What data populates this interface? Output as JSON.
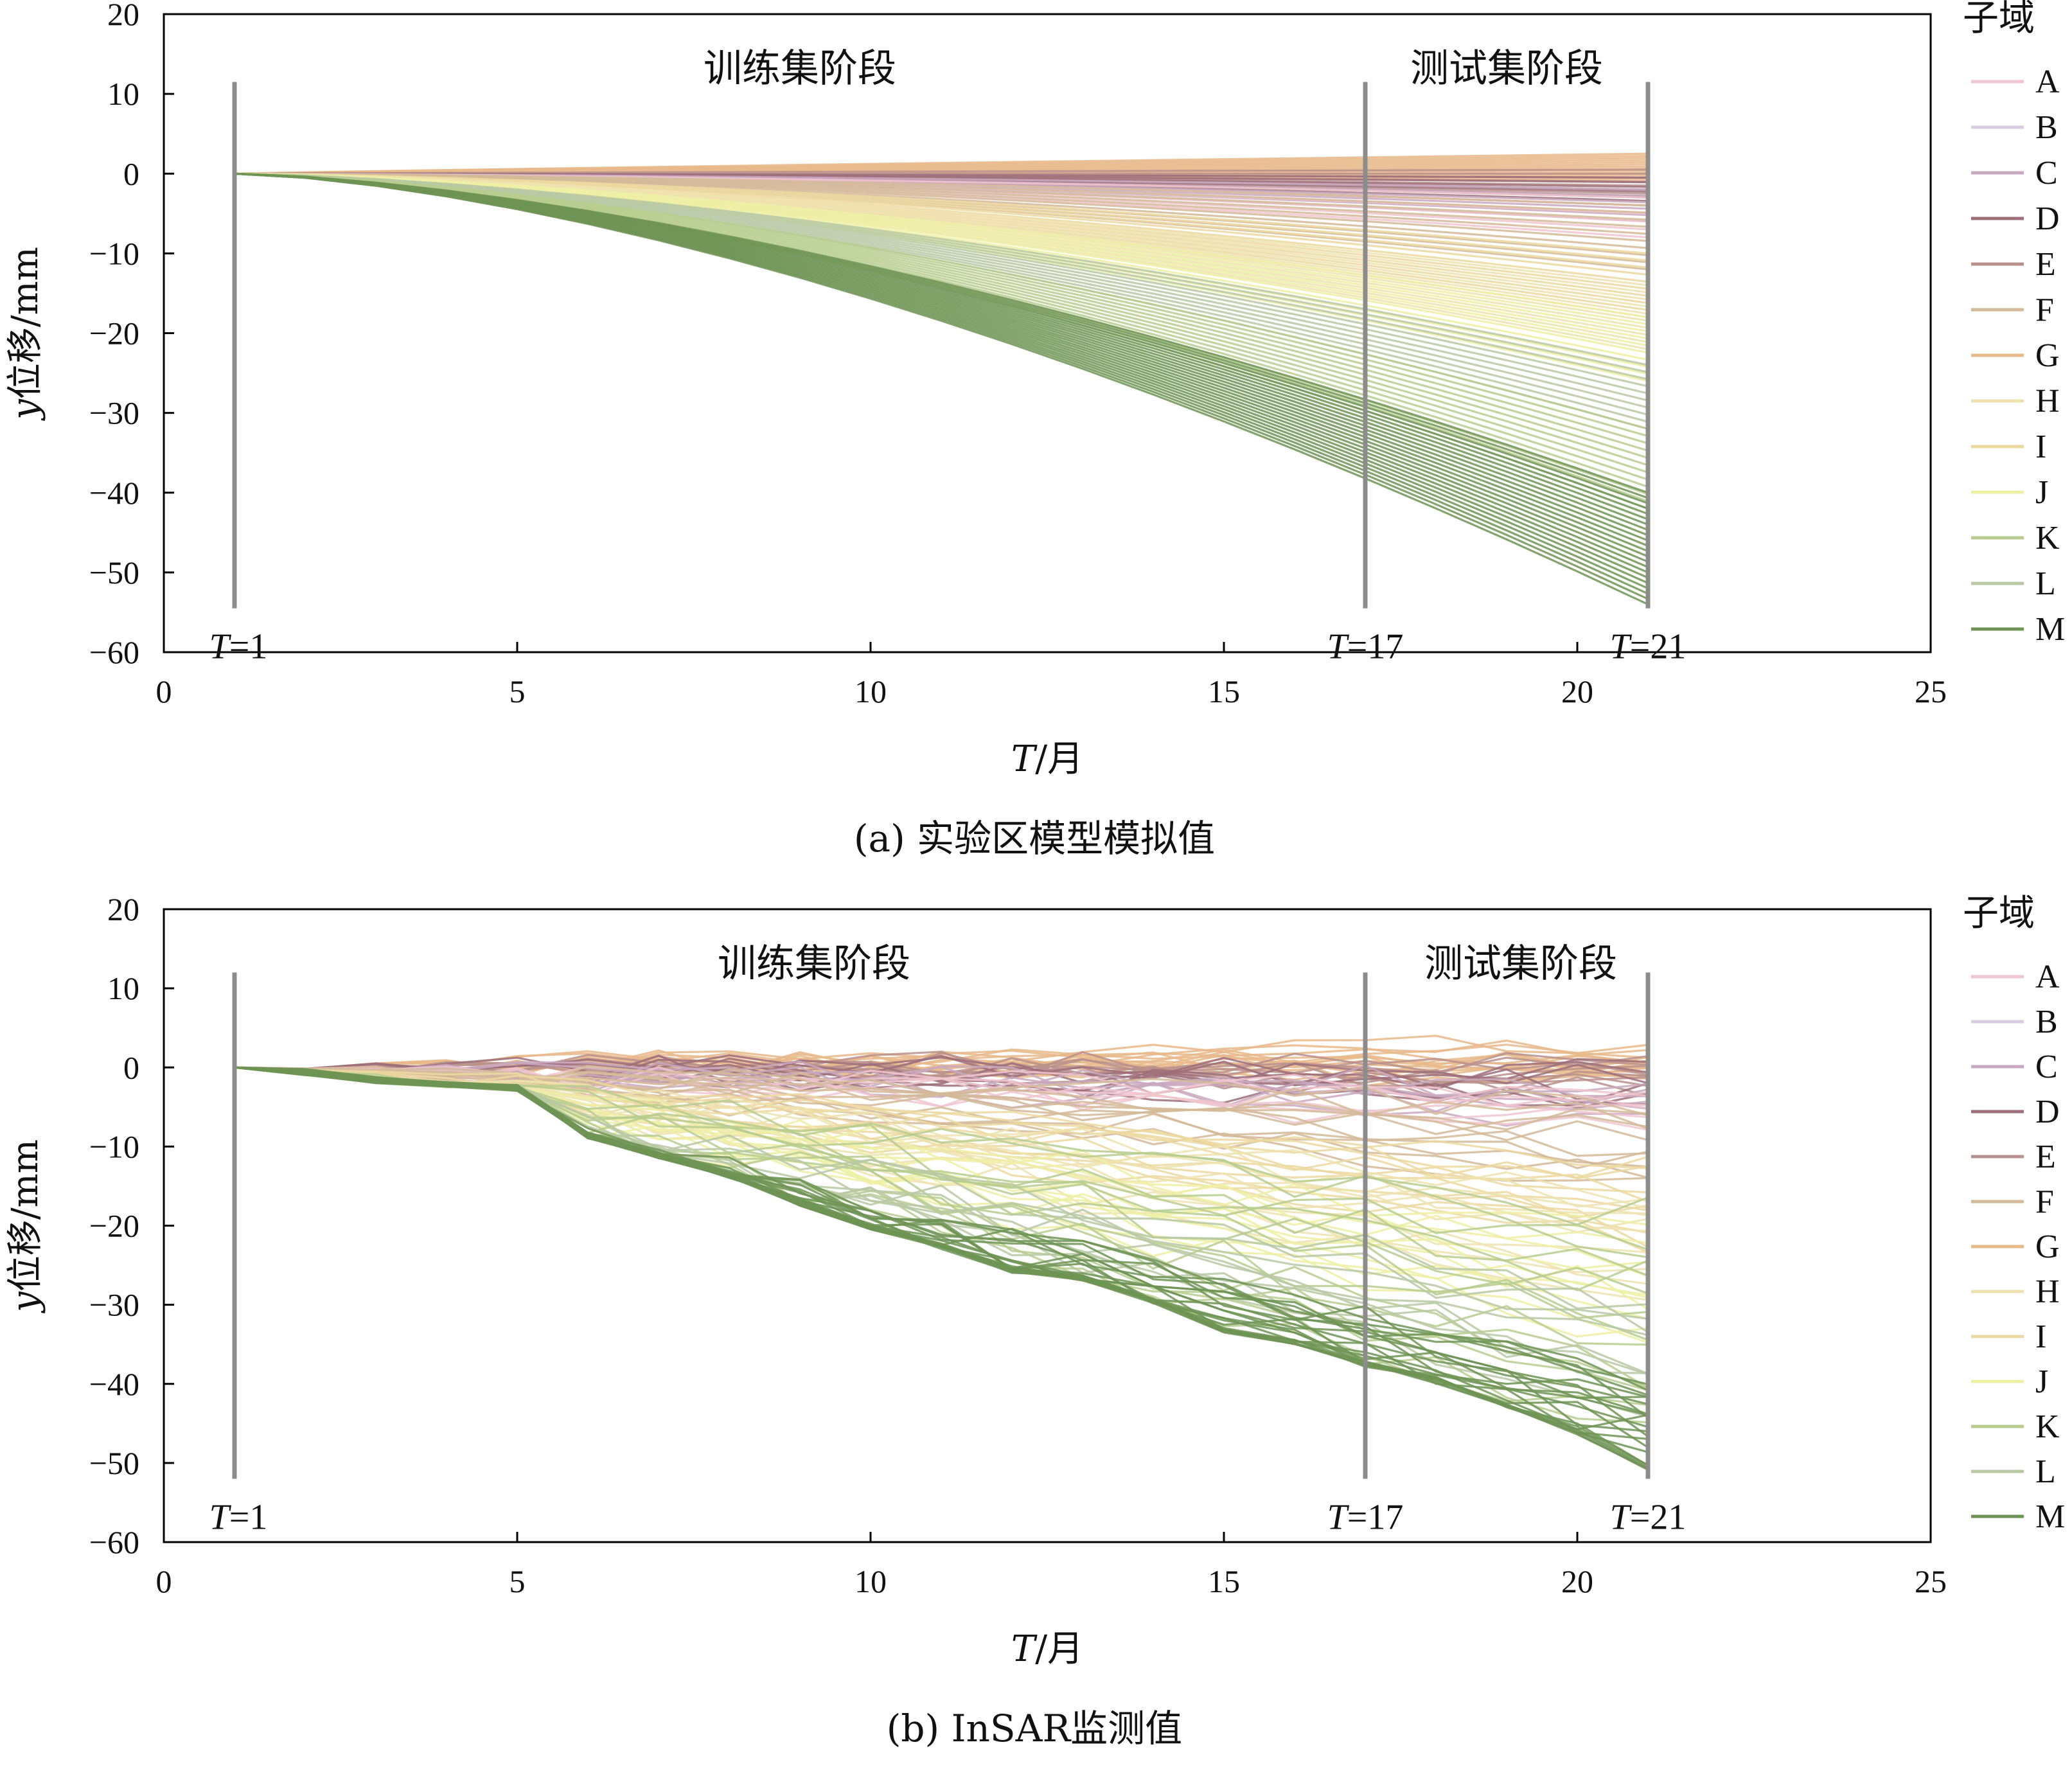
{
  "colors": {
    "subdomains": {
      "A": "#f0c6cf",
      "B": "#d9cde3",
      "C": "#c9a9bf",
      "D": "#9e6f7a",
      "E": "#b8918c",
      "F": "#d4ba98",
      "G": "#e8b98a",
      "H": "#eee3b0",
      "I": "#ecd9a0",
      "J": "#eef0a4",
      "K": "#b7cc8e",
      "L": "#b9c9a5",
      "M": "#6e9455"
    },
    "marker_line": "#8c8c8c"
  },
  "chart_data": [
    {
      "type": "line",
      "caption": "(a) 实验区模型模拟值",
      "ylabel_italic": "y",
      "ylabel_rest": "位移/mm",
      "xlabel_italic": "T",
      "xlabel_rest": "/月",
      "xlim": [
        0,
        25
      ],
      "ylim": [
        -60,
        20
      ],
      "xticks": [
        "0",
        "5",
        "10",
        "15",
        "20",
        "25"
      ],
      "yticks": [
        "20",
        "10",
        "0",
        "−10",
        "−20",
        "−30",
        "−40",
        "−50",
        "−60"
      ],
      "phases": [
        {
          "label": "训练集阶段",
          "x_center": 9
        },
        {
          "label": "测试集阶段",
          "x_center": 19
        }
      ],
      "markers": [
        {
          "t": 1,
          "label_italic": "T",
          "label_rest": "=1",
          "y_top": 11.5,
          "y_bottom": -54.5
        },
        {
          "t": 17,
          "label_italic": "T",
          "label_rest": "=17",
          "y_top": 11.5,
          "y_bottom": -54.5
        },
        {
          "t": 21,
          "label_italic": "T",
          "label_rest": "=21",
          "y_top": 11.5,
          "y_bottom": -54.5
        }
      ],
      "legend_title": "子域",
      "legend": [
        "A",
        "B",
        "C",
        "D",
        "E",
        "F",
        "G",
        "H",
        "I",
        "J",
        "K",
        "L",
        "M"
      ],
      "t_range": [
        1,
        21
      ],
      "series_bands": [
        {
          "subdomain": "G",
          "count": 14,
          "final_range": [
            2.5,
            -1
          ]
        },
        {
          "subdomain": "E",
          "count": 8,
          "final_range": [
            0.5,
            -3
          ]
        },
        {
          "subdomain": "D",
          "count": 7,
          "final_range": [
            -0.5,
            -4
          ]
        },
        {
          "subdomain": "C",
          "count": 6,
          "final_range": [
            -2,
            -6
          ]
        },
        {
          "subdomain": "A",
          "count": 6,
          "final_range": [
            -3,
            -8
          ]
        },
        {
          "subdomain": "F",
          "count": 10,
          "final_range": [
            -4,
            -12
          ]
        },
        {
          "subdomain": "I",
          "count": 10,
          "final_range": [
            -10,
            -18
          ]
        },
        {
          "subdomain": "H",
          "count": 10,
          "final_range": [
            -14,
            -22
          ]
        },
        {
          "subdomain": "J",
          "count": 10,
          "final_range": [
            -18,
            -26
          ]
        },
        {
          "subdomain": "L",
          "count": 10,
          "final_range": [
            -24,
            -32
          ]
        },
        {
          "subdomain": "K",
          "count": 12,
          "final_range": [
            -32,
            -42
          ]
        },
        {
          "subdomain": "M",
          "count": 22,
          "final_range": [
            -40,
            -54
          ]
        }
      ]
    },
    {
      "type": "line",
      "caption": "(b) InSAR监测值",
      "ylabel_italic": "y",
      "ylabel_rest": "位移/mm",
      "xlabel_italic": "T",
      "xlabel_rest": "/月",
      "xlim": [
        0,
        25
      ],
      "ylim": [
        -60,
        20
      ],
      "xticks": [
        "0",
        "5",
        "10",
        "15",
        "20",
        "25"
      ],
      "yticks": [
        "20",
        "10",
        "0",
        "−10",
        "−20",
        "−30",
        "−40",
        "−50",
        "−60"
      ],
      "phases": [
        {
          "label": "训练集阶段",
          "x_center": 9.2
        },
        {
          "label": "测试集阶段",
          "x_center": 19.2
        }
      ],
      "markers": [
        {
          "t": 1,
          "label_italic": "T",
          "label_rest": "=1",
          "y_top": 12,
          "y_bottom": -52
        },
        {
          "t": 17,
          "label_italic": "T",
          "label_rest": "=17",
          "y_top": 12,
          "y_bottom": -52
        },
        {
          "t": 21,
          "label_italic": "T",
          "label_rest": "=21",
          "y_top": 12,
          "y_bottom": -52
        }
      ],
      "legend_title": "子域",
      "legend": [
        "A",
        "B",
        "C",
        "D",
        "E",
        "F",
        "G",
        "H",
        "I",
        "J",
        "K",
        "L",
        "M"
      ],
      "t_range": [
        1,
        21
      ],
      "top_envelope": [
        0,
        1,
        1.5,
        2.5,
        3,
        3.5,
        4,
        2.5,
        2,
        2.5,
        2,
        2.5,
        2,
        3,
        2.5,
        4,
        5.5,
        6,
        3.5,
        2,
        3.5
      ],
      "bottom_envelope": [
        0,
        -1,
        -2,
        -2.5,
        -3,
        -9,
        -11.5,
        -14,
        -17.5,
        -20.5,
        -23,
        -26,
        -27,
        -30,
        -33.5,
        -35,
        -38,
        -40,
        -43,
        -46.5,
        -51
      ],
      "series_bands": [
        {
          "subdomain": "G",
          "count": 14,
          "final_range": [
            3,
            -1
          ],
          "noise": 1.6
        },
        {
          "subdomain": "E",
          "count": 8,
          "final_range": [
            1,
            -3
          ],
          "noise": 1.8
        },
        {
          "subdomain": "D",
          "count": 7,
          "final_range": [
            -0.5,
            -4
          ],
          "noise": 2.0
        },
        {
          "subdomain": "C",
          "count": 6,
          "final_range": [
            -2,
            -6
          ],
          "noise": 2.0
        },
        {
          "subdomain": "A",
          "count": 6,
          "final_range": [
            -3,
            -7.5
          ],
          "noise": 1.8
        },
        {
          "subdomain": "F",
          "count": 10,
          "final_range": [
            -5,
            -14
          ],
          "noise": 1.8
        },
        {
          "subdomain": "I",
          "count": 10,
          "final_range": [
            -12,
            -22
          ],
          "noise": 2.0
        },
        {
          "subdomain": "H",
          "count": 10,
          "final_range": [
            -16,
            -28
          ],
          "noise": 2.2
        },
        {
          "subdomain": "J",
          "count": 10,
          "final_range": [
            -22,
            -34
          ],
          "noise": 2.4
        },
        {
          "subdomain": "K",
          "count": 14,
          "final_range": [
            -19,
            -46
          ],
          "noise": 3.0
        },
        {
          "subdomain": "L",
          "count": 8,
          "final_range": [
            -30,
            -42
          ],
          "noise": 2.6
        },
        {
          "subdomain": "M",
          "count": 22,
          "final_range": [
            -40,
            -51
          ],
          "noise": 2.4
        }
      ]
    }
  ]
}
